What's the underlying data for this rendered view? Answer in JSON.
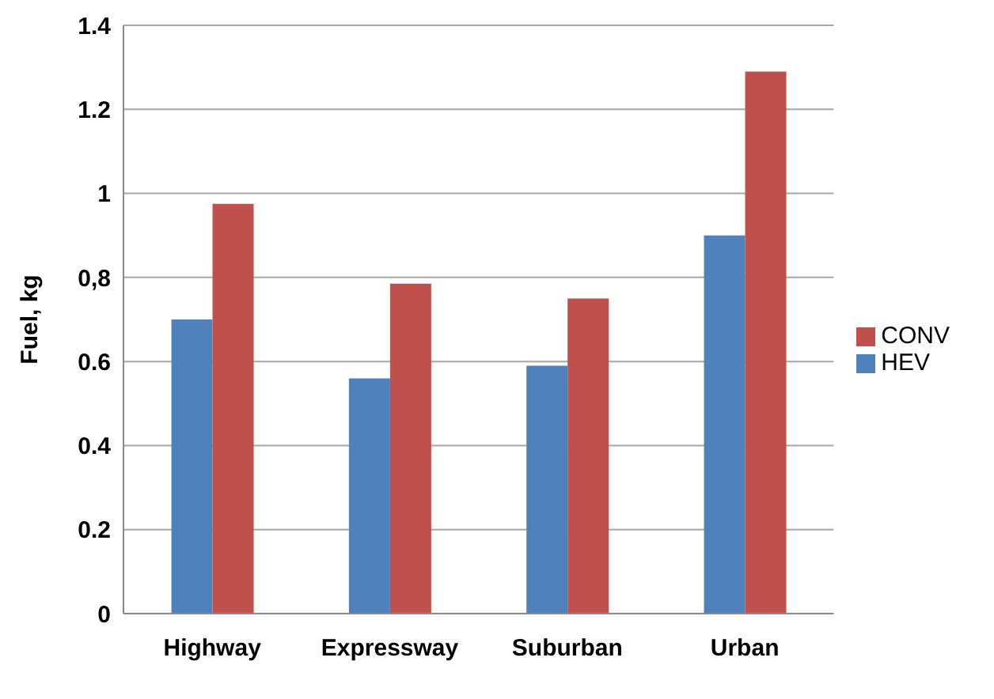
{
  "chart_data": {
    "type": "bar",
    "ylabel": "Fuel, kg",
    "categories": [
      "Highway",
      "Expressway",
      "Suburban",
      "Urban"
    ],
    "series": [
      {
        "name": "HEV",
        "color": "#4f81bd",
        "values": [
          0.7,
          0.56,
          0.59,
          0.9
        ]
      },
      {
        "name": "CONV",
        "color": "#c0504d",
        "values": [
          0.975,
          0.785,
          0.75,
          1.29
        ]
      }
    ],
    "ylim": [
      0,
      1.4
    ],
    "yticks": [
      0,
      0.2,
      0.4,
      0.6,
      {
        "value": 0.8,
        "label": "0,8"
      },
      1,
      1.2,
      1.4
    ],
    "grid": "y",
    "legend": "right"
  }
}
